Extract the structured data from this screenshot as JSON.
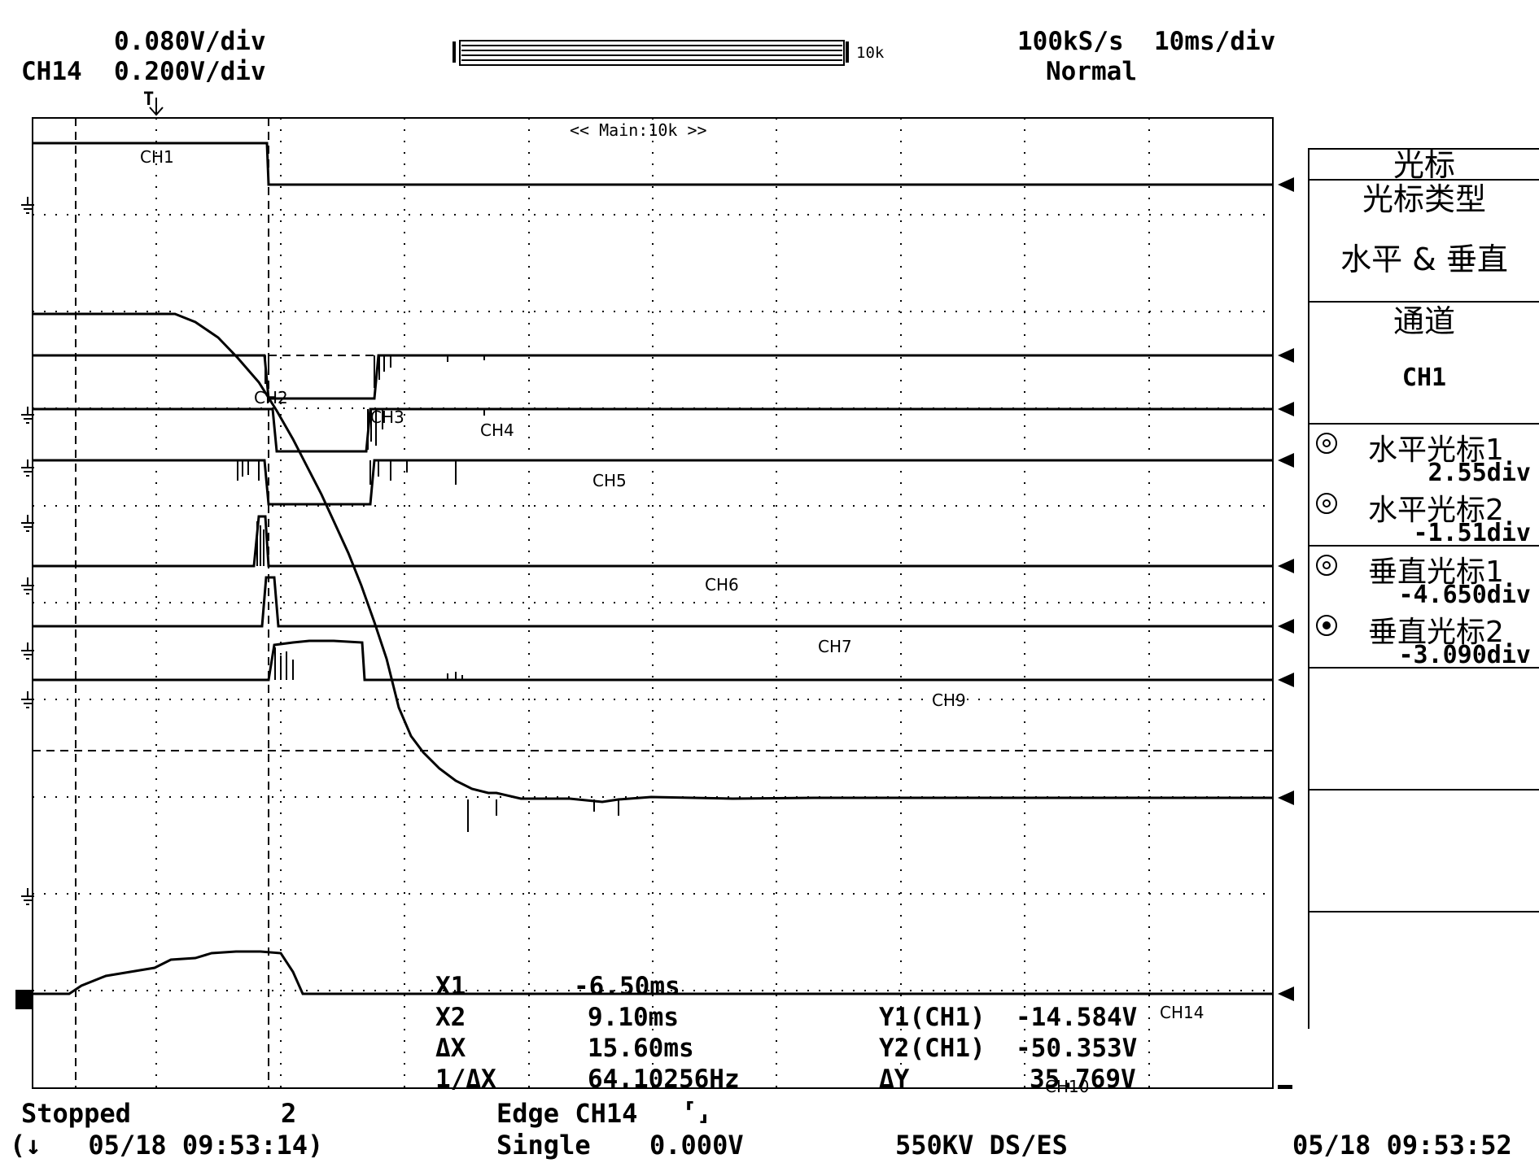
{
  "header": {
    "scale_1": "0.080V/div",
    "ch_label": "CH14",
    "scale_2": "0.200V/div",
    "record_length": "10k",
    "sample_rate": "100kS/s",
    "time_div": "10ms/div",
    "trigger_mode": "Normal",
    "zoom_label": "<< Main:10k >>"
  },
  "trigger_marker": "T",
  "channels": [
    "CH1",
    "CH2",
    "CH3",
    "CH4",
    "CH5",
    "CH6",
    "CH7",
    "CH9",
    "CH10",
    "CH14"
  ],
  "panel": {
    "title": "光标",
    "cursor_type_label": "光标类型",
    "cursor_type_value": "水平 & 垂直",
    "channel_label": "通道",
    "channel_value": "CH1",
    "cursors": [
      {
        "name": "水平光标1",
        "value": "2.55div",
        "filled": false
      },
      {
        "name": "水平光标2",
        "value": "-1.51div",
        "filled": false
      },
      {
        "name": "垂直光标1",
        "value": "-4.650div",
        "filled": false
      },
      {
        "name": "垂直光标2",
        "value": "-3.090div",
        "filled": true
      }
    ]
  },
  "measurements": {
    "x1_label": "X1",
    "x1_value": "-6.50ms",
    "x2_label": "X2",
    "x2_value": "9.10ms",
    "dx_label": "ΔX",
    "dx_value": "15.60ms",
    "inv_dx_label": "1/ΔX",
    "inv_dx_value": "64.10256Hz",
    "y1_label": "Y1(CH1)",
    "y1_value": "-14.584V",
    "y2_label": "Y2(CH1)",
    "y2_value": "-50.353V",
    "dy_label": "ΔY",
    "dy_value": "35.769V"
  },
  "footer": {
    "status": "Stopped",
    "acq_count": "2",
    "trigger": "Edge CH14",
    "slope_icon": "rising-falling-edge-icon",
    "mode": "Single",
    "trigger_level": "0.000V",
    "title": "550KV DS/ES",
    "trigger_time": "(↓   05/18 09:53:14)",
    "current_time": "05/18 09:53:52"
  }
}
